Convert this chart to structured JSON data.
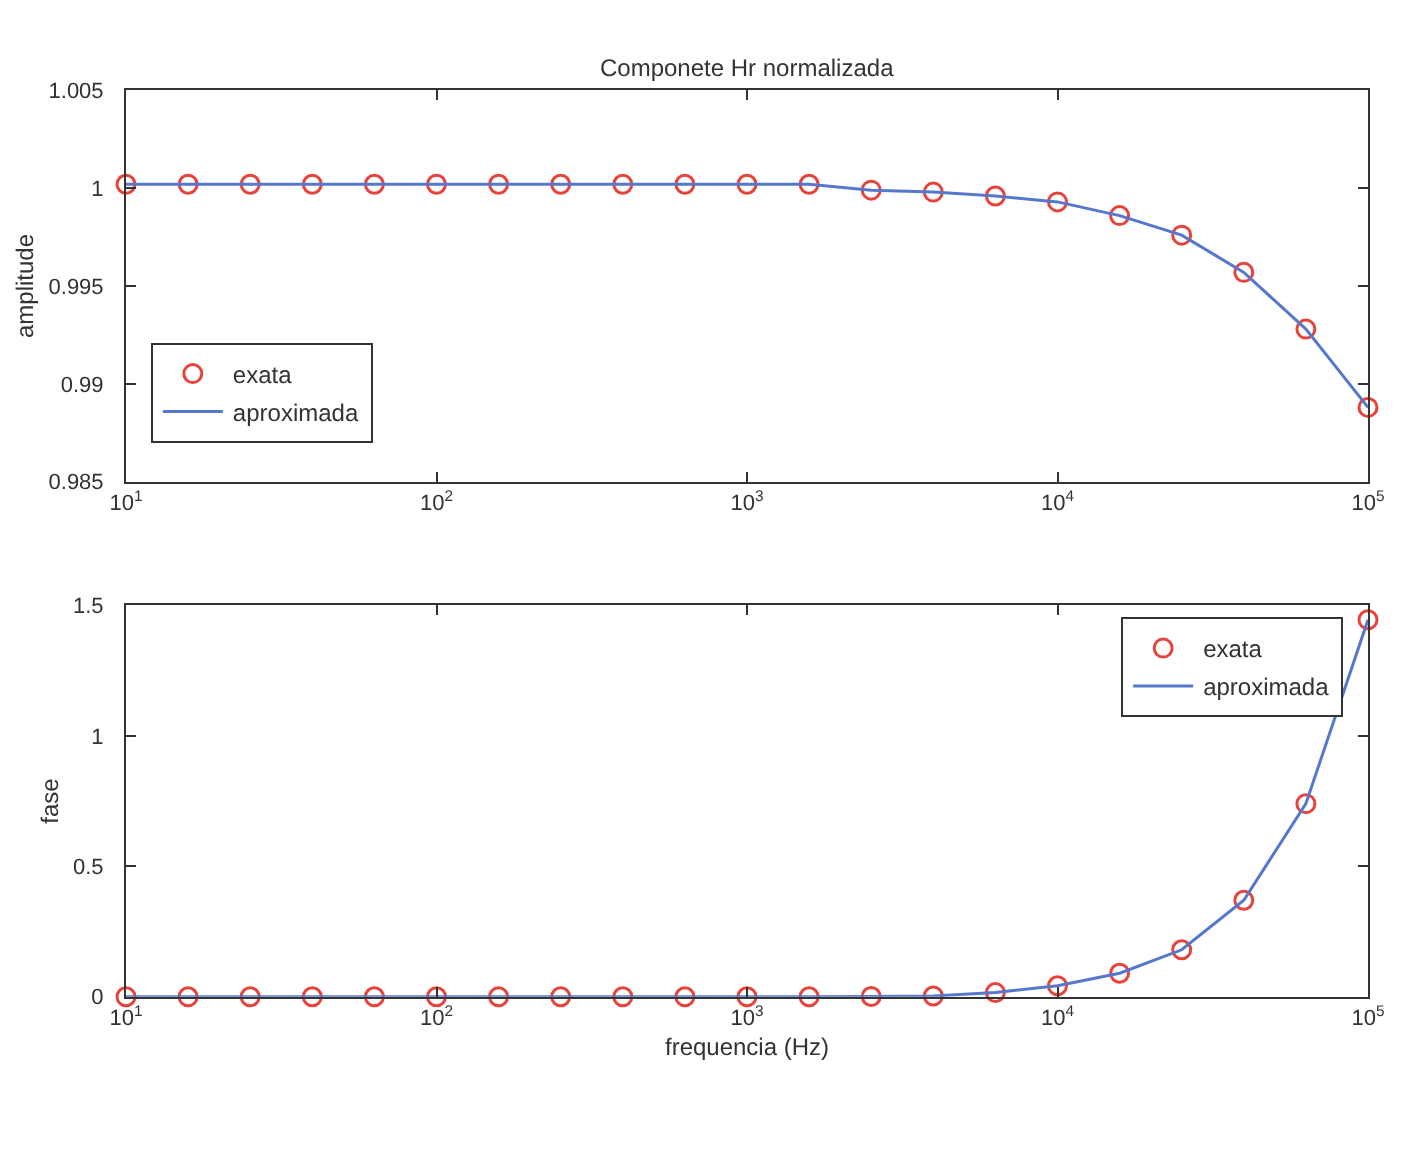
{
  "chart_data": [
    {
      "type": "line",
      "title": "Componete Hr normalizada",
      "ylabel": "amplitude",
      "log": "x",
      "grid": false,
      "legend": "bottom left",
      "xlim": [
        10,
        100000
      ],
      "xticks": [
        {
          "value": 10,
          "label": "10$^{1}$"
        },
        {
          "value": 100,
          "label": "10$^{2}$"
        },
        {
          "value": 1000,
          "label": "10$^{3}$"
        },
        {
          "value": 10000,
          "label": "10$^{4}$"
        },
        {
          "value": 100000,
          "label": "10$^{5}$"
        }
      ],
      "ylim": [
        0.985,
        1.005
      ],
      "yticks": [
        0.985,
        0.99,
        0.995,
        {
          "value": 1,
          "label": "1"
        },
        1.005
      ],
      "x": [
        10,
        15.85,
        25.12,
        39.81,
        63.1,
        100,
        158.5,
        251.2,
        398.1,
        631,
        1000,
        1585,
        2512,
        3981,
        6310,
        10000,
        15850,
        25120,
        39810,
        63100,
        100000
      ],
      "series": [
        {
          "name": "exata",
          "type": "scatter",
          "marker": "circle",
          "color": "#e8433a",
          "values": [
            1.0002,
            1.0002,
            1.0002,
            1.0002,
            1.0002,
            1.0002,
            1.0002,
            1.0002,
            1.0002,
            1.0002,
            1.0002,
            1.0002,
            0.9999,
            0.9998,
            0.9996,
            0.9993,
            0.9986,
            0.9976,
            0.9957,
            0.9928,
            0.9888
          ]
        },
        {
          "name": "aproximada",
          "color": "#5577cc",
          "values": [
            1.0002,
            1.0002,
            1.0002,
            1.0002,
            1.0002,
            1.0002,
            1.0002,
            1.0002,
            1.0002,
            1.0002,
            1.0002,
            1.0002,
            0.9999,
            0.9998,
            0.9996,
            0.9993,
            0.9986,
            0.9976,
            0.9957,
            0.9928,
            0.9888
          ]
        }
      ]
    },
    {
      "type": "line",
      "xlabel": "frequencia (Hz)",
      "ylabel": "fase",
      "log": "x",
      "grid": false,
      "legend": "top right",
      "xlim": [
        10,
        100000
      ],
      "xticks": [
        {
          "value": 10,
          "label": "10$^{1}$"
        },
        {
          "value": 100,
          "label": "10$^{2}$"
        },
        {
          "value": 1000,
          "label": "10$^{3}$"
        },
        {
          "value": 10000,
          "label": "10$^{4}$"
        },
        {
          "value": 100000,
          "label": "10$^{5}$"
        }
      ],
      "ylim": [
        0,
        1.5
      ],
      "yticks": [
        0,
        0.5,
        1,
        1.5
      ],
      "x": [
        10,
        15.85,
        25.12,
        39.81,
        63.1,
        100,
        158.5,
        251.2,
        398.1,
        631,
        1000,
        1585,
        2512,
        3981,
        6310,
        10000,
        15850,
        25120,
        39810,
        63100,
        100000
      ],
      "series": [
        {
          "name": "exata",
          "type": "scatter",
          "marker": "circle",
          "color": "#e8433a",
          "values": [
            0,
            0,
            0,
            0,
            0,
            0,
            0,
            0,
            0,
            0,
            0,
            0,
            0.001,
            0.003,
            0.016,
            0.042,
            0.09,
            0.18,
            0.37,
            0.74,
            1.445
          ]
        },
        {
          "name": "aproximada",
          "color": "#5577cc",
          "values": [
            0,
            0,
            0,
            0,
            0,
            0,
            0,
            0,
            0,
            0,
            0,
            0,
            0.001,
            0.003,
            0.016,
            0.042,
            0.09,
            0.18,
            0.37,
            0.74,
            1.445
          ]
        }
      ]
    }
  ]
}
